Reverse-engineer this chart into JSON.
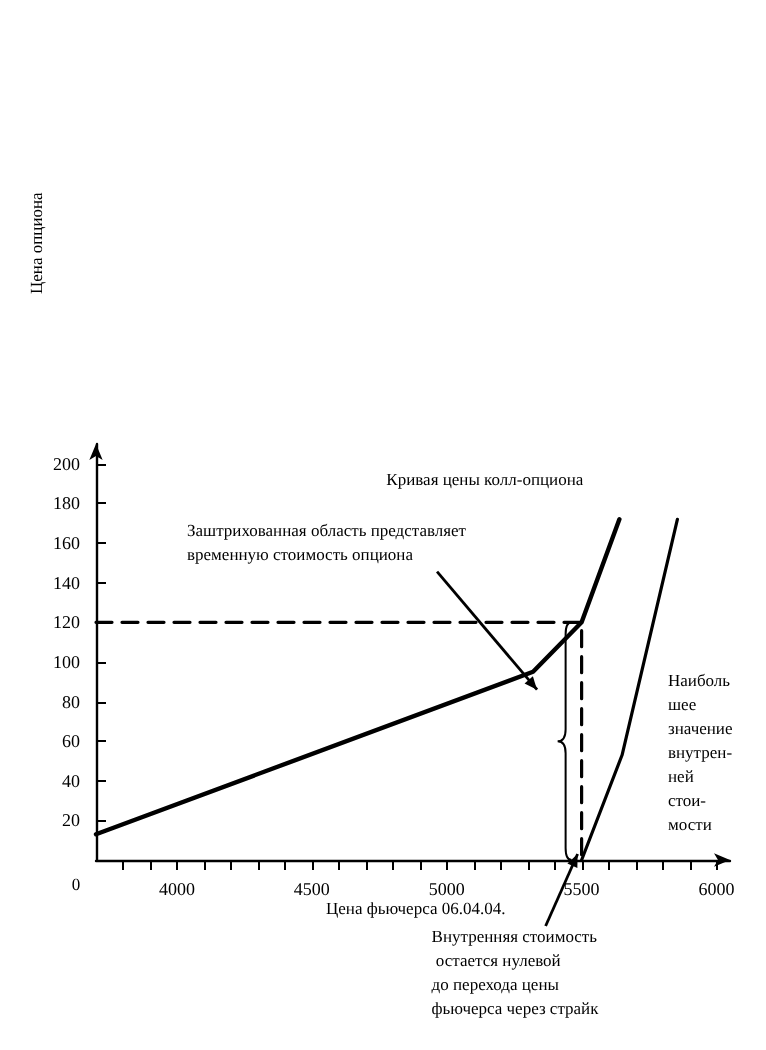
{
  "chart_data": {
    "type": "line",
    "xlabel": "Цена фьючерса 06.04.04.",
    "xlim": [
      3700,
      6050
    ],
    "xticks": [
      {
        "value": 3800,
        "label": null
      },
      {
        "value": 3900,
        "label": null
      },
      4000,
      {
        "value": 4100,
        "label": null
      },
      {
        "value": 4200,
        "label": null
      },
      {
        "value": 4300,
        "label": null
      },
      {
        "value": 4400,
        "label": null
      },
      4500,
      {
        "value": 4600,
        "label": null
      },
      {
        "value": 4700,
        "label": null
      },
      {
        "value": 4800,
        "label": null
      },
      {
        "value": 4900,
        "label": null
      },
      5000,
      {
        "value": 5100,
        "label": null
      },
      {
        "value": 5200,
        "label": null
      },
      {
        "value": 5300,
        "label": null
      },
      {
        "value": 5400,
        "label": null
      },
      5500,
      {
        "value": 5600,
        "label": null
      },
      {
        "value": 5700,
        "label": null
      },
      {
        "value": 5800,
        "label": null
      },
      {
        "value": 5900,
        "label": null
      },
      6000
    ],
    "ylim": [
      0,
      210
    ],
    "yticks": [
      20,
      40,
      60,
      80,
      100,
      120,
      140,
      160,
      180,
      200
    ],
    "grid": false,
    "legend": false,
    "marker": "none",
    "series": [
      {
        "name": "Кривая цены колл-опциона",
        "color": "#000000",
        "x": [
          3700,
          5320,
          5500,
          5640
        ],
        "values": [
          13,
          95,
          120,
          172
        ]
      },
      {
        "color": "#000000",
        "x": [
          5500,
          5650,
          5855
        ],
        "values": [
          0,
          53,
          172
        ]
      },
      {
        "color": "#000000",
        "line_style": "dashed",
        "x": [
          3700,
          5500,
          5500
        ],
        "values": [
          120,
          120,
          0
        ]
      }
    ],
    "annotations": [
      {
        "text": "Заштрихованная область представляет\nвременную стоимость опциона",
        "x": 5320,
        "y": 90
      },
      "Наиболь\nшее\nзначение\nвнутрен-\nней\nстои-\nмости",
      {
        "text": "Внутренняя стоимость\n остается нулевой\nдо  перехода цены\nфьючерса через страйк",
        "x": 5500,
        "y": 0
      },
      "0",
      "Цена опциона"
    ]
  }
}
